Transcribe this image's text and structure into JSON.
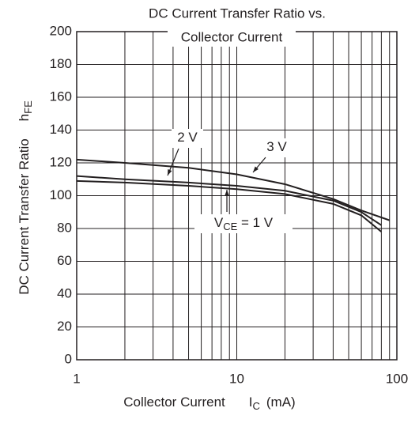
{
  "chart_data": {
    "type": "line",
    "title": [
      "DC Current Transfer Ratio vs.",
      "Collector Current"
    ],
    "x_label": {
      "text": "Collector Current",
      "symbol": "I",
      "sub": "C",
      "unit": "(mA)"
    },
    "y_label": {
      "text": "DC Current Transfer Ratio",
      "symbol": "h",
      "sub": "FE"
    },
    "log_x": true,
    "minor_grid": true,
    "grid": true,
    "xlim": [
      1,
      100
    ],
    "xticks": [
      1,
      10,
      100
    ],
    "ylim": [
      0,
      200
    ],
    "yticks": [
      0,
      20,
      40,
      60,
      80,
      100,
      120,
      140,
      160,
      180,
      200
    ],
    "series": [
      {
        "name": "3 V",
        "color": "#231f20",
        "x": [
          1,
          2,
          5,
          10,
          20,
          40,
          60,
          90
        ],
        "values": [
          122,
          120,
          117,
          113,
          107,
          98,
          91,
          85
        ]
      },
      {
        "name": "2 V",
        "color": "#231f20",
        "x": [
          1,
          2,
          5,
          10,
          20,
          40,
          60,
          80
        ],
        "values": [
          112,
          110,
          108,
          106,
          103,
          97,
          90,
          82
        ]
      },
      {
        "name": "V",
        "sub": "CE",
        "suffix": " = 1 V",
        "color": "#231f20",
        "x": [
          1,
          2,
          5,
          10,
          20,
          40,
          60,
          80
        ],
        "values": [
          109,
          108,
          106,
          104,
          101,
          95,
          88,
          78
        ]
      }
    ]
  }
}
